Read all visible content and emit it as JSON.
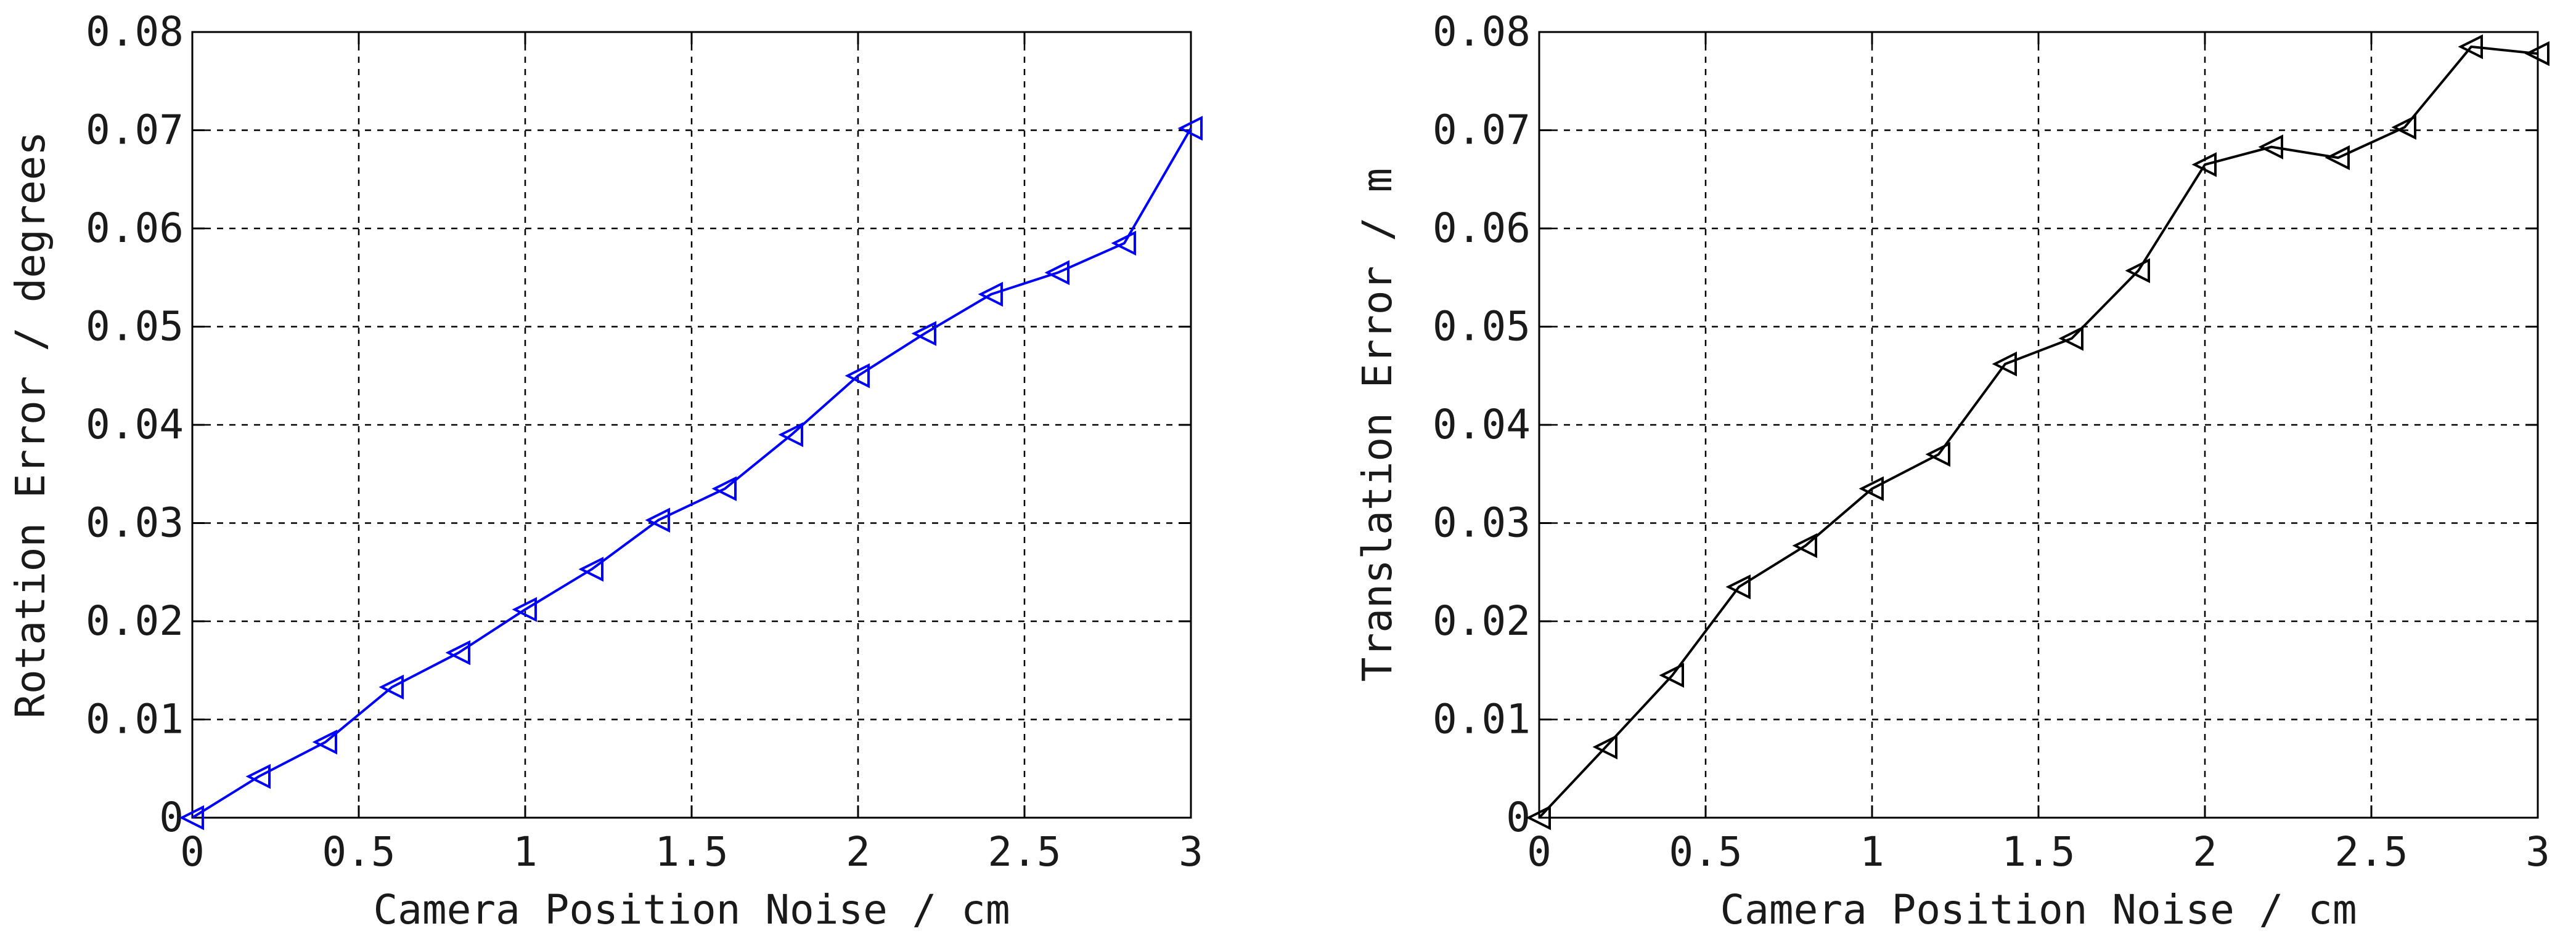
{
  "chart_data": [
    {
      "type": "line",
      "title": "",
      "xlabel": "Camera Position Noise / cm",
      "ylabel": "Rotation Error / degrees",
      "xlim": [
        0,
        3
      ],
      "ylim": [
        0,
        0.08
      ],
      "xticks": [
        0,
        0.5,
        1,
        1.5,
        2,
        2.5,
        3
      ],
      "xtick_labels": [
        "0",
        "0.5",
        "1",
        "1.5",
        "2",
        "2.5",
        "3"
      ],
      "yticks": [
        0,
        0.01,
        0.02,
        0.03,
        0.04,
        0.05,
        0.06,
        0.07,
        0.08
      ],
      "ytick_labels": [
        "0",
        "0.01",
        "0.02",
        "0.03",
        "0.04",
        "0.05",
        "0.06",
        "0.07",
        "0.08"
      ],
      "grid": true,
      "grid_style": "dashed",
      "marker": "triangle-left",
      "color": "#0000ff",
      "x": [
        0,
        0.2,
        0.4,
        0.6,
        0.8,
        1.0,
        1.2,
        1.4,
        1.6,
        1.8,
        2.0,
        2.2,
        2.4,
        2.6,
        2.8,
        3.0
      ],
      "y": [
        0.0,
        0.0042,
        0.0077,
        0.0133,
        0.0168,
        0.0212,
        0.0253,
        0.0303,
        0.0335,
        0.039,
        0.045,
        0.0493,
        0.0533,
        0.0555,
        0.0585,
        0.0702
      ]
    },
    {
      "type": "line",
      "title": "",
      "xlabel": "Camera Position Noise / cm",
      "ylabel": "Translation Error / m",
      "xlim": [
        0,
        3
      ],
      "ylim": [
        0,
        0.08
      ],
      "xticks": [
        0,
        0.5,
        1,
        1.5,
        2,
        2.5,
        3
      ],
      "xtick_labels": [
        "0",
        "0.5",
        "1",
        "1.5",
        "2",
        "2.5",
        "3"
      ],
      "yticks": [
        0,
        0.01,
        0.02,
        0.03,
        0.04,
        0.05,
        0.06,
        0.07,
        0.08
      ],
      "ytick_labels": [
        "0",
        "0.01",
        "0.02",
        "0.03",
        "0.04",
        "0.05",
        "0.06",
        "0.07",
        "0.08"
      ],
      "grid": true,
      "grid_style": "dashed",
      "marker": "triangle-left",
      "color": "#000000",
      "x": [
        0,
        0.2,
        0.4,
        0.6,
        0.8,
        1.0,
        1.2,
        1.4,
        1.6,
        1.8,
        2.0,
        2.2,
        2.4,
        2.6,
        2.8,
        3.0
      ],
      "y": [
        0.0,
        0.0072,
        0.0145,
        0.0235,
        0.0277,
        0.0335,
        0.037,
        0.0462,
        0.0488,
        0.0557,
        0.0665,
        0.0683,
        0.0672,
        0.0703,
        0.0785,
        0.0778
      ]
    }
  ]
}
